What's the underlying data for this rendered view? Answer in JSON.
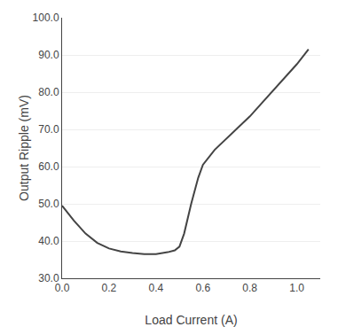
{
  "chart_data": {
    "type": "line",
    "x": [
      0.0,
      0.05,
      0.1,
      0.15,
      0.2,
      0.25,
      0.3,
      0.35,
      0.4,
      0.45,
      0.48,
      0.5,
      0.52,
      0.55,
      0.58,
      0.6,
      0.65,
      0.7,
      0.75,
      0.8,
      0.85,
      0.9,
      0.95,
      1.0,
      1.05
    ],
    "values": [
      49.5,
      45.5,
      42.0,
      39.5,
      38.0,
      37.2,
      36.8,
      36.5,
      36.5,
      37.0,
      37.5,
      38.5,
      42.0,
      50.0,
      57.0,
      60.5,
      64.5,
      67.5,
      70.5,
      73.5,
      77.0,
      80.5,
      84.0,
      87.5,
      91.5
    ],
    "color": "#444444",
    "xlabel": "Load Current (A)",
    "ylabel": "Output Ripple (mV)",
    "xlim": [
      0.0,
      1.1
    ],
    "ylim": [
      30.0,
      100.0
    ],
    "xticks": [
      {
        "value": 0.0,
        "label": "0.0"
      },
      0.2,
      0.4,
      0.6,
      0.8,
      {
        "value": 1.0,
        "label": "1.0"
      }
    ],
    "yticks": [
      {
        "value": 30.0,
        "label": "30.0"
      },
      {
        "value": 40.0,
        "label": "40.0"
      },
      {
        "value": 50.0,
        "label": "50.0"
      },
      {
        "value": 60.0,
        "label": "60.0"
      },
      {
        "value": 70.0,
        "label": "70.0"
      },
      {
        "value": 80.0,
        "label": "80.0"
      },
      {
        "value": 90.0,
        "label": "90.0"
      },
      {
        "value": 100.0,
        "label": "100.0"
      }
    ],
    "grid": "y"
  }
}
